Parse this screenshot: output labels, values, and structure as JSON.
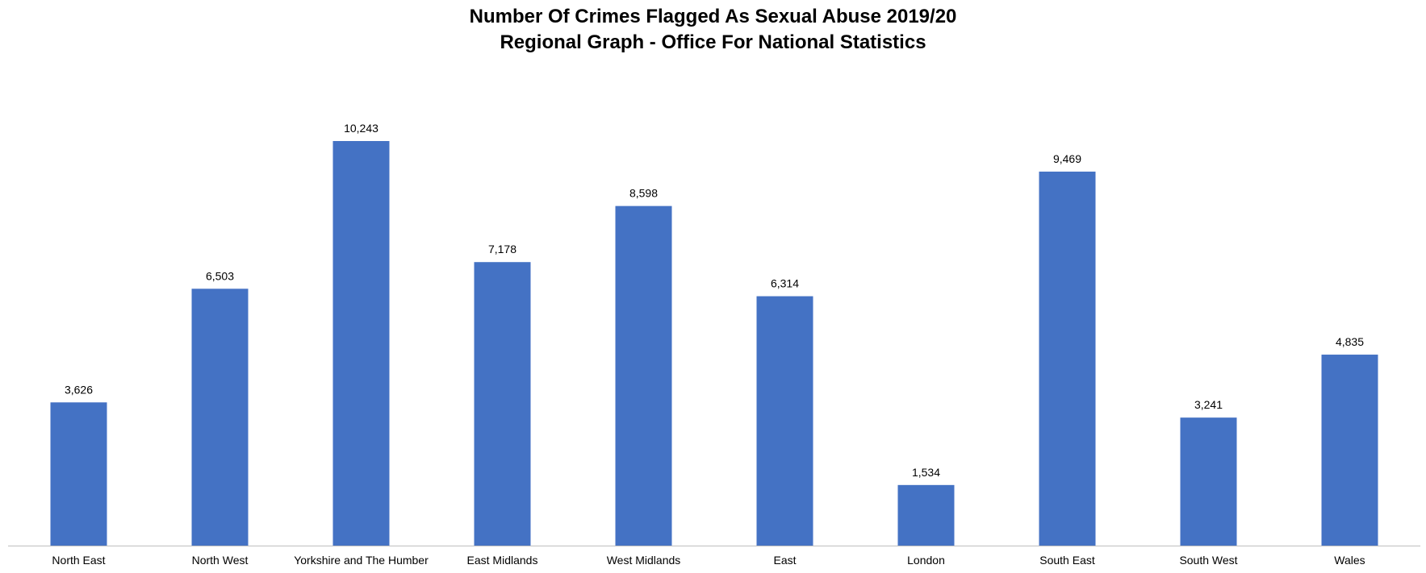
{
  "chart_data": {
    "type": "bar",
    "title": [
      "Number Of Crimes Flagged As Sexual Abuse 2019/20",
      "Regional Graph  - Office For National Statistics"
    ],
    "categories": [
      "North East",
      "North West",
      "Yorkshire and The Humber",
      "East Midlands",
      "West Midlands",
      "East",
      "London",
      "South East",
      "South West",
      "Wales"
    ],
    "values": [
      3626,
      6503,
      10243,
      7178,
      8598,
      6314,
      1534,
      9469,
      3241,
      4835
    ],
    "data_labels": [
      "3,626",
      "6,503",
      "10,243",
      "7,178",
      "8,598",
      "6,314",
      "1,534",
      "9,469",
      "3,241",
      "4,835"
    ],
    "xlabel": "",
    "ylabel": "",
    "ylim": [
      0,
      10243
    ],
    "grid": false,
    "legend": "none",
    "bar_color": "#4472C4",
    "axis_color": "#BFBFBF"
  }
}
